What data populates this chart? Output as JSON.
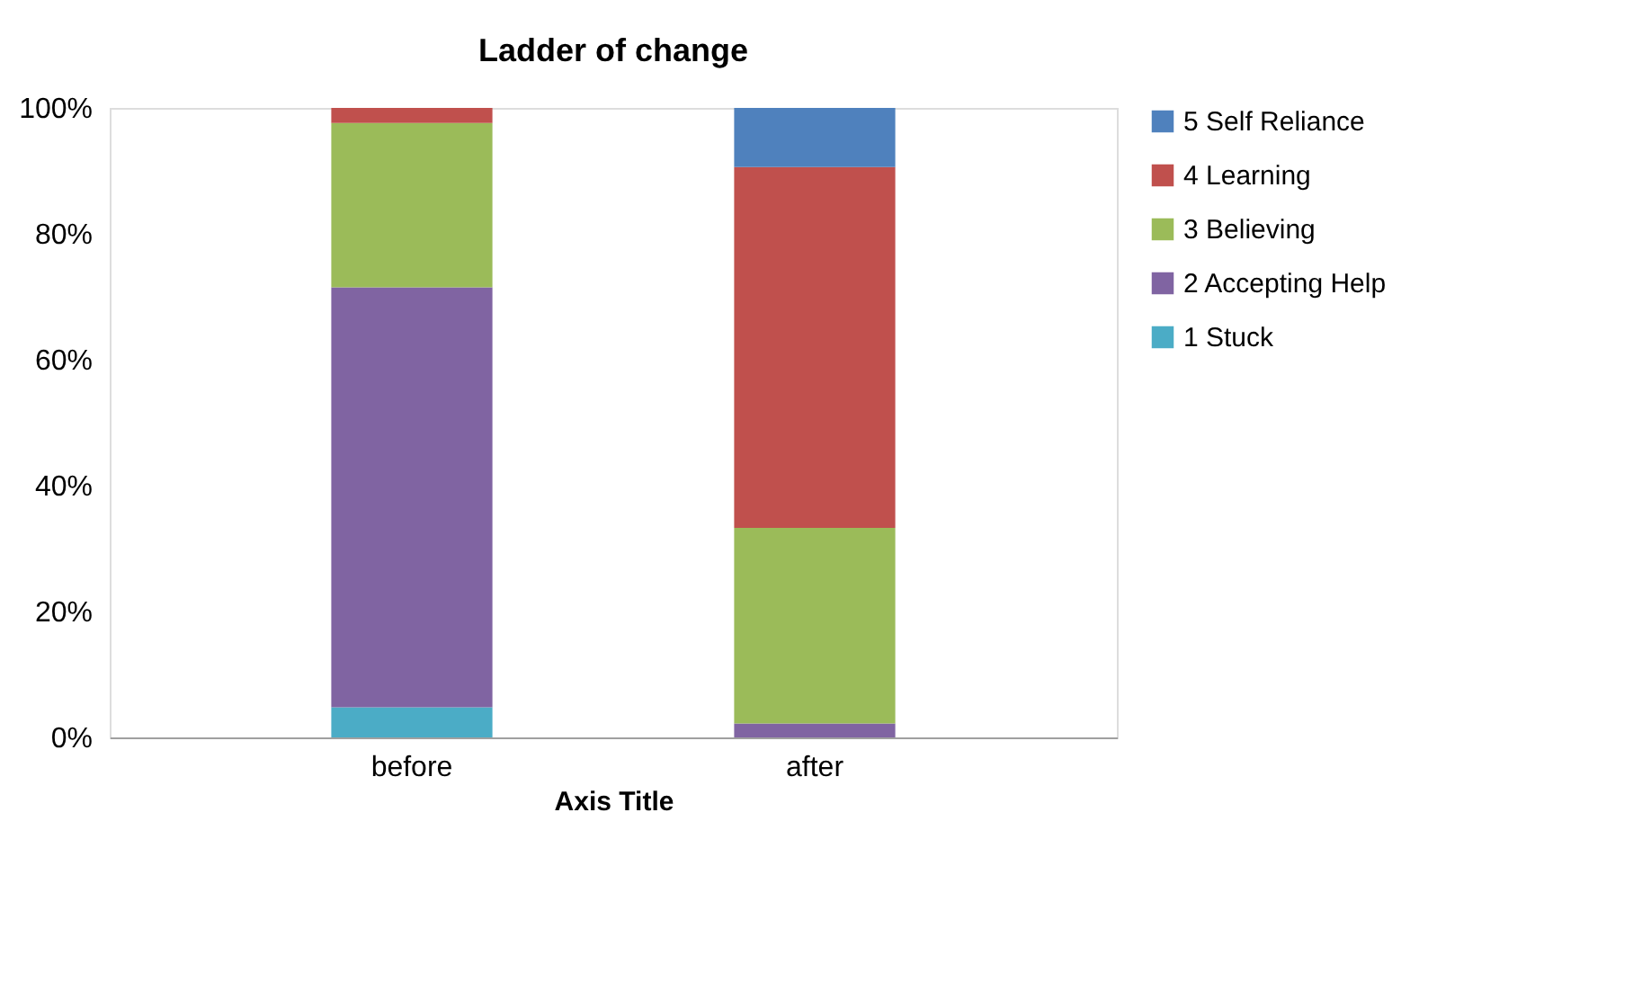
{
  "chart_data": {
    "type": "bar",
    "title": "Ladder of change",
    "xlabel": "Axis Title",
    "categories": [
      "before",
      "after"
    ],
    "stacked": true,
    "legend": "right",
    "grid": false,
    "ylim": [
      0,
      100
    ],
    "yticks": [
      {
        "value": 0,
        "label": "0%"
      },
      {
        "value": 20,
        "label": "20%"
      },
      {
        "value": 40,
        "label": "40%"
      },
      {
        "value": 60,
        "label": "60%"
      },
      {
        "value": 80,
        "label": "80%"
      },
      {
        "value": 100,
        "label": "100%"
      }
    ],
    "series": [
      {
        "name": "1 Stuck",
        "color": "#4bacc6",
        "values": [
          4.8,
          0
        ]
      },
      {
        "name": "2 Accepting Help",
        "color": "#8064a2",
        "values": [
          66.7,
          2.2
        ]
      },
      {
        "name": "3 Believing",
        "color": "#9bbb59",
        "values": [
          26.1,
          31.1
        ]
      },
      {
        "name": "4 Learning",
        "color": "#c0504d",
        "values": [
          2.4,
          57.3
        ]
      },
      {
        "name": "5 Self Reliance",
        "color": "#4f81bd",
        "values": [
          0,
          9.4
        ]
      }
    ]
  }
}
